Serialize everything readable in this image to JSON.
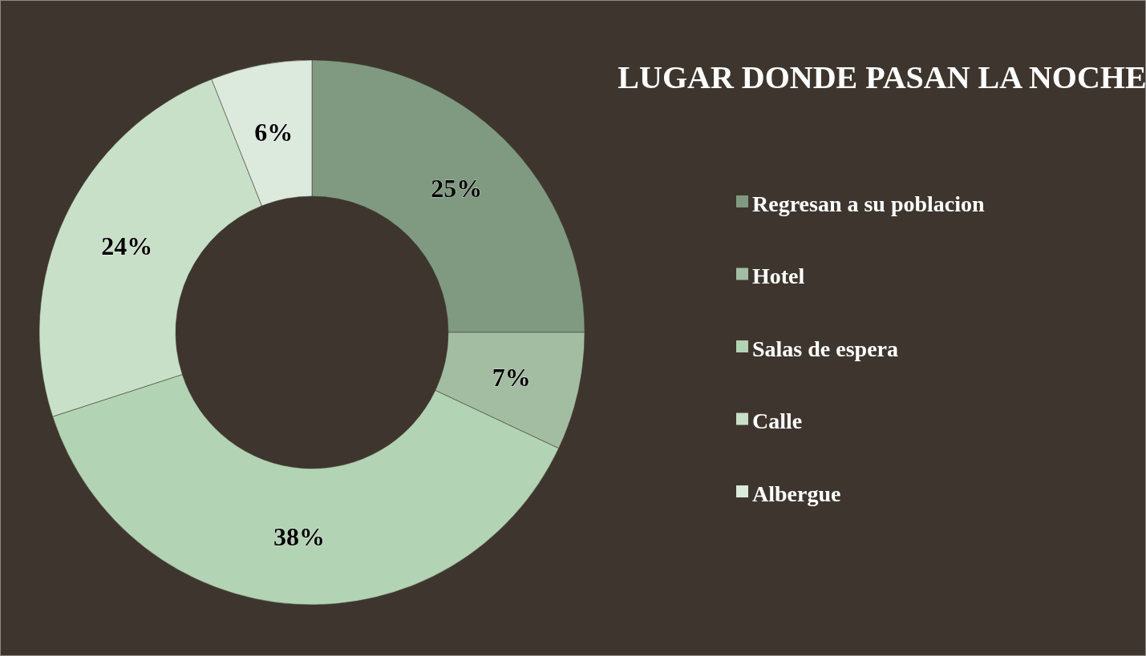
{
  "chart_data": {
    "type": "donut",
    "title": "LUGAR DONDE PASAN LA NOCHE",
    "categories": [
      "Regresan a su poblacion",
      "Hotel",
      "Salas de espera",
      "Calle",
      "Albergue"
    ],
    "values": [
      25,
      7,
      38,
      24,
      6
    ],
    "colors": [
      "#7f9a80",
      "#a3bda2",
      "#b2d3b4",
      "#c8e0c8",
      "#dce9dd"
    ],
    "value_labels": [
      "25%",
      "7%",
      "38%",
      "24%",
      "6%"
    ],
    "legend": "right"
  }
}
